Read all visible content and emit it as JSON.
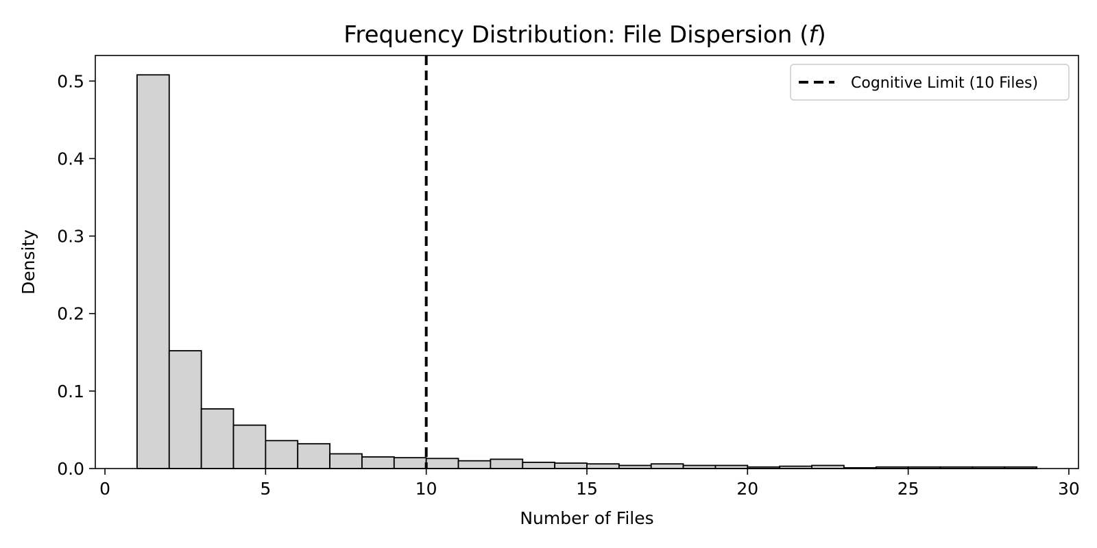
{
  "chart_data": {
    "type": "bar",
    "title": "Frequency Distribution: File Dispersion (f)",
    "title_parts": {
      "before": "Frequency Distribution: File Dispersion (",
      "italic": "f",
      "after": ")"
    },
    "xlabel": "Number of Files",
    "ylabel": "Density",
    "xlim": [
      -0.3,
      30.3
    ],
    "ylim": [
      0,
      0.533
    ],
    "xticks": [
      0,
      5,
      10,
      15,
      20,
      25,
      30
    ],
    "xtick_labels": [
      "0",
      "5",
      "10",
      "15",
      "20",
      "25",
      "30"
    ],
    "yticks": [
      0.0,
      0.1,
      0.2,
      0.3,
      0.4,
      0.5
    ],
    "ytick_labels": [
      "0.0",
      "0.1",
      "0.2",
      "0.3",
      "0.4",
      "0.5"
    ],
    "grid": false,
    "bins": [
      {
        "x0": 1,
        "x1": 2,
        "value": 0.508
      },
      {
        "x0": 2,
        "x1": 3,
        "value": 0.152
      },
      {
        "x0": 3,
        "x1": 4,
        "value": 0.077
      },
      {
        "x0": 4,
        "x1": 5,
        "value": 0.056
      },
      {
        "x0": 5,
        "x1": 6,
        "value": 0.036
      },
      {
        "x0": 6,
        "x1": 7,
        "value": 0.032
      },
      {
        "x0": 7,
        "x1": 8,
        "value": 0.019
      },
      {
        "x0": 8,
        "x1": 9,
        "value": 0.015
      },
      {
        "x0": 9,
        "x1": 10,
        "value": 0.014
      },
      {
        "x0": 10,
        "x1": 11,
        "value": 0.013
      },
      {
        "x0": 11,
        "x1": 12,
        "value": 0.01
      },
      {
        "x0": 12,
        "x1": 13,
        "value": 0.012
      },
      {
        "x0": 13,
        "x1": 14,
        "value": 0.008
      },
      {
        "x0": 14,
        "x1": 15,
        "value": 0.007
      },
      {
        "x0": 15,
        "x1": 16,
        "value": 0.006
      },
      {
        "x0": 16,
        "x1": 17,
        "value": 0.004
      },
      {
        "x0": 17,
        "x1": 18,
        "value": 0.006
      },
      {
        "x0": 18,
        "x1": 19,
        "value": 0.004
      },
      {
        "x0": 19,
        "x1": 20,
        "value": 0.004
      },
      {
        "x0": 20,
        "x1": 21,
        "value": 0.002
      },
      {
        "x0": 21,
        "x1": 22,
        "value": 0.003
      },
      {
        "x0": 22,
        "x1": 23,
        "value": 0.004
      },
      {
        "x0": 23,
        "x1": 24,
        "value": 0.001
      },
      {
        "x0": 24,
        "x1": 25,
        "value": 0.002
      },
      {
        "x0": 25,
        "x1": 26,
        "value": 0.002
      },
      {
        "x0": 26,
        "x1": 27,
        "value": 0.002
      },
      {
        "x0": 27,
        "x1": 28,
        "value": 0.002
      },
      {
        "x0": 28,
        "x1": 29,
        "value": 0.002
      }
    ],
    "bar_color": "#d3d3d3",
    "bar_edge_color": "#000000",
    "reference_line": {
      "x": 10,
      "style": "dashed",
      "color": "#000000",
      "label": "Cognitive Limit (10 Files)"
    },
    "legend_position": "upper-right"
  }
}
